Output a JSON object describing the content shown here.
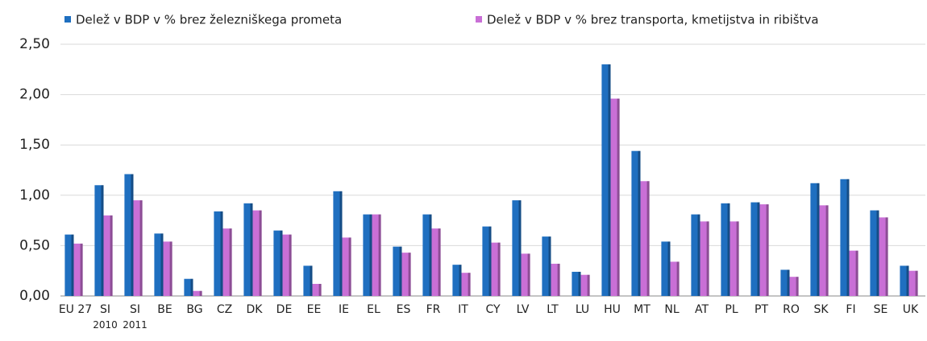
{
  "chart_data": {
    "type": "bar",
    "categories": [
      "EU 27",
      "SI\n2010",
      "SI\n2011",
      "BE",
      "BG",
      "CZ",
      "DK",
      "DE",
      "EE",
      "IE",
      "EL",
      "ES",
      "FR",
      "IT",
      "CY",
      "LV",
      "LT",
      "LU",
      "HU",
      "MT",
      "NL",
      "AT",
      "PL",
      "PT",
      "RO",
      "SK",
      "FI",
      "SE",
      "UK"
    ],
    "series": [
      {
        "name": "Delež v BDP v % brez železniškega prometa",
        "color": "#1f6fc0",
        "values": [
          0.61,
          1.1,
          1.21,
          0.62,
          0.17,
          0.84,
          0.92,
          0.65,
          0.3,
          1.04,
          0.81,
          0.49,
          0.81,
          0.31,
          0.69,
          0.95,
          0.59,
          0.24,
          2.3,
          1.44,
          0.54,
          0.81,
          0.92,
          0.93,
          0.26,
          1.12,
          1.16,
          0.85,
          0.3
        ]
      },
      {
        "name": "Delež v BDP v % brez transporta, kmetijstva in ribištva",
        "color": "#c96fd6",
        "values": [
          0.52,
          0.8,
          0.95,
          0.54,
          0.05,
          0.67,
          0.85,
          0.61,
          0.12,
          0.58,
          0.81,
          0.43,
          0.67,
          0.23,
          0.53,
          0.42,
          0.32,
          0.21,
          1.96,
          1.14,
          0.34,
          0.74,
          0.74,
          0.91,
          0.19,
          0.9,
          0.45,
          0.78,
          0.25
        ]
      }
    ],
    "ylim": [
      0,
      2.5
    ],
    "yticks": [
      {
        "value": 0,
        "label": "0,00"
      },
      {
        "value": 0.5,
        "label": "0,50"
      },
      {
        "value": 1,
        "label": "1,00"
      },
      {
        "value": 1.5,
        "label": "1,50"
      },
      {
        "value": 2,
        "label": "2,00"
      },
      {
        "value": 2.5,
        "label": "2,50"
      }
    ],
    "grid": true
  }
}
